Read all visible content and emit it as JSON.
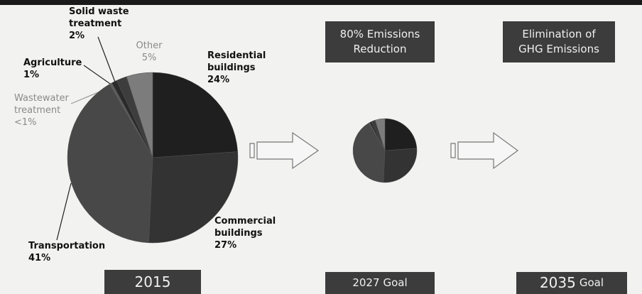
{
  "chart_data": {
    "type": "pie",
    "categories": [
      "Residential buildings",
      "Commercial buildings",
      "Transportation",
      "Wastewater treatment",
      "Agriculture",
      "Solid waste treatment",
      "Other"
    ],
    "values": [
      24,
      27,
      41,
      0.5,
      1,
      2,
      5
    ],
    "value_labels": [
      "24%",
      "27%",
      "41%",
      "<1%",
      "1%",
      "2%",
      "5%"
    ],
    "colors": [
      "#1f1f1f",
      "#333333",
      "#484848",
      "#5c5c5c",
      "#2a2a2a",
      "#3d3d3d",
      "#7c7c7c"
    ]
  },
  "stages": [
    {
      "label": {
        "year": "2015"
      }
    },
    {
      "header": "80% Emissions Reduction",
      "label": {
        "year": "2027",
        "word": "Goal"
      }
    },
    {
      "header": "Elimination of GHG Emissions",
      "label": {
        "year": "2035",
        "word": "Goal"
      }
    }
  ]
}
